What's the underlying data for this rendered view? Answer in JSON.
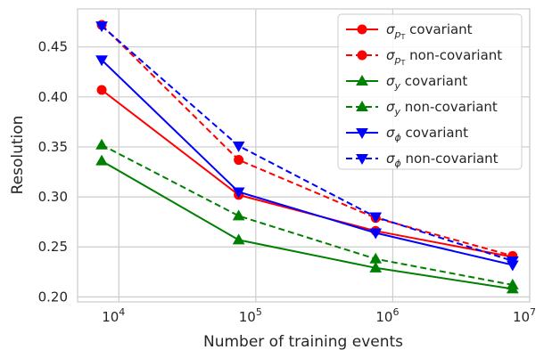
{
  "chart_data": {
    "type": "line",
    "title": "",
    "xlabel": "Number of training events",
    "ylabel": "Resolution",
    "x_scale": "log",
    "xlim": [
      5000,
      10000000
    ],
    "ylim": [
      0.195,
      0.488
    ],
    "grid": true,
    "legend_position": "top-right",
    "x": [
      7500,
      75000,
      750000,
      7500000
    ],
    "x_ticks": [
      {
        "value": 10000,
        "base": "10",
        "exp": "4"
      },
      {
        "value": 100000,
        "base": "10",
        "exp": "5"
      },
      {
        "value": 1000000,
        "base": "10",
        "exp": "6"
      },
      {
        "value": 10000000,
        "base": "10",
        "exp": "7"
      }
    ],
    "y_ticks": [
      {
        "value": 0.2,
        "label": "0.20"
      },
      {
        "value": 0.25,
        "label": "0.25"
      },
      {
        "value": 0.3,
        "label": "0.30"
      },
      {
        "value": 0.35,
        "label": "0.35"
      },
      {
        "value": 0.4,
        "label": "0.40"
      },
      {
        "value": 0.45,
        "label": "0.45"
      }
    ],
    "series": [
      {
        "name": "σ_{pT} covariant",
        "sym": "σ",
        "sub": "p",
        "subsub": "T",
        "suffix": " covariant",
        "color": "#ff0000",
        "dash": "solid",
        "marker": "circle",
        "values": [
          0.407,
          0.302,
          0.266,
          0.24
        ]
      },
      {
        "name": "σ_{pT} non-covariant",
        "sym": "σ",
        "sub": "p",
        "subsub": "T",
        "suffix": " non-covariant",
        "color": "#ff0000",
        "dash": "dashed",
        "marker": "circle",
        "values": [
          0.472,
          0.337,
          0.279,
          0.241
        ]
      },
      {
        "name": "σ_y covariant",
        "sym": "σ",
        "sub": "y",
        "subsub": "",
        "suffix": " covariant",
        "color": "#008000",
        "dash": "solid",
        "marker": "triangle-up",
        "values": [
          0.336,
          0.257,
          0.229,
          0.208
        ]
      },
      {
        "name": "σ_y non-covariant",
        "sym": "σ",
        "sub": "y",
        "subsub": "",
        "suffix": " non-covariant",
        "color": "#008000",
        "dash": "dashed",
        "marker": "triangle-up",
        "values": [
          0.352,
          0.281,
          0.238,
          0.212
        ]
      },
      {
        "name": "σ_φ covariant",
        "sym": "σ",
        "sub": "ϕ",
        "subsub": "",
        "suffix": " covariant",
        "color": "#0000ff",
        "dash": "solid",
        "marker": "triangle-down",
        "values": [
          0.437,
          0.305,
          0.264,
          0.232
        ]
      },
      {
        "name": "σ_φ non-covariant",
        "sym": "σ",
        "sub": "ϕ",
        "subsub": "",
        "suffix": " non-covariant",
        "color": "#0000ff",
        "dash": "dashed",
        "marker": "triangle-down",
        "values": [
          0.471,
          0.351,
          0.28,
          0.236
        ]
      }
    ]
  }
}
